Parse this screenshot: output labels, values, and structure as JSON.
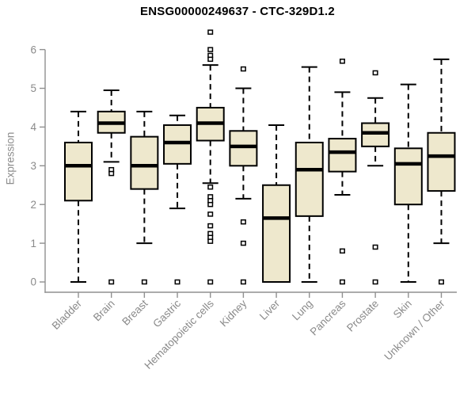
{
  "chart_data": {
    "type": "boxplot",
    "title": "ENSG00000249637 - CTC-329D1.2",
    "ylabel": "Expression",
    "xlabel": "",
    "ylim": [
      0,
      6.5
    ],
    "yticks": [
      0,
      1,
      2,
      3,
      4,
      5,
      6
    ],
    "grid": false,
    "legend": "none",
    "categories": [
      "Bladder",
      "Brain",
      "Breast",
      "Gastric",
      "Hematopoietic cells",
      "Kidney",
      "Liver",
      "Lung",
      "Pancreas",
      "Prostate",
      "Skin",
      "Unknown / Other"
    ],
    "series": [
      {
        "name": "Bladder",
        "whisker_low": 0,
        "q1": 2.1,
        "median": 3.0,
        "q3": 3.6,
        "whisker_high": 4.4,
        "outliers": []
      },
      {
        "name": "Brain",
        "whisker_low": 3.1,
        "q1": 3.85,
        "median": 4.1,
        "q3": 4.4,
        "whisker_high": 4.95,
        "outliers": [
          2.9,
          2.8,
          0
        ]
      },
      {
        "name": "Breast",
        "whisker_low": 1.0,
        "q1": 2.4,
        "median": 3.0,
        "q3": 3.75,
        "whisker_high": 4.4,
        "outliers": [
          0
        ]
      },
      {
        "name": "Gastric",
        "whisker_low": 1.9,
        "q1": 3.05,
        "median": 3.6,
        "q3": 4.05,
        "whisker_high": 4.3,
        "outliers": [
          0
        ]
      },
      {
        "name": "Hematopoietic cells",
        "whisker_low": 2.55,
        "q1": 3.65,
        "median": 4.1,
        "q3": 4.5,
        "whisker_high": 5.6,
        "outliers": [
          6.45,
          6.0,
          5.85,
          5.75,
          2.45,
          2.2,
          2.1,
          2.0,
          1.75,
          1.45,
          1.25,
          1.15,
          1.05,
          0
        ]
      },
      {
        "name": "Kidney",
        "whisker_low": 2.15,
        "q1": 3.0,
        "median": 3.5,
        "q3": 3.9,
        "whisker_high": 5.0,
        "outliers": [
          5.5,
          1.55,
          1.0,
          0
        ]
      },
      {
        "name": "Liver",
        "whisker_low": 0,
        "q1": 0,
        "median": 1.65,
        "q3": 2.5,
        "whisker_high": 4.05,
        "outliers": []
      },
      {
        "name": "Lung",
        "whisker_low": 0,
        "q1": 1.7,
        "median": 2.9,
        "q3": 3.6,
        "whisker_high": 5.55,
        "outliers": []
      },
      {
        "name": "Pancreas",
        "whisker_low": 2.25,
        "q1": 2.85,
        "median": 3.35,
        "q3": 3.7,
        "whisker_high": 4.9,
        "outliers": [
          5.7,
          0.8,
          0
        ]
      },
      {
        "name": "Prostate",
        "whisker_low": 3.0,
        "q1": 3.5,
        "median": 3.85,
        "q3": 4.1,
        "whisker_high": 4.75,
        "outliers": [
          5.4,
          0.9,
          0
        ]
      },
      {
        "name": "Skin",
        "whisker_low": 0,
        "q1": 2.0,
        "median": 3.05,
        "q3": 3.45,
        "whisker_high": 5.1,
        "outliers": []
      },
      {
        "name": "Unknown / Other",
        "whisker_low": 1.0,
        "q1": 2.35,
        "median": 3.25,
        "q3": 3.85,
        "whisker_high": 5.75,
        "outliers": [
          0
        ]
      }
    ],
    "colors": {
      "background": "#FFFFFF",
      "box_fill": "#EEE8CD",
      "box_border": "#000000",
      "median": "#000000",
      "whisker": "#000000",
      "outlier_fill": "#FFFFFF",
      "outlier_border": "#000000",
      "axis_line": "#909090",
      "axis_text": "#8A8A8A",
      "title_text": "#000000"
    }
  }
}
